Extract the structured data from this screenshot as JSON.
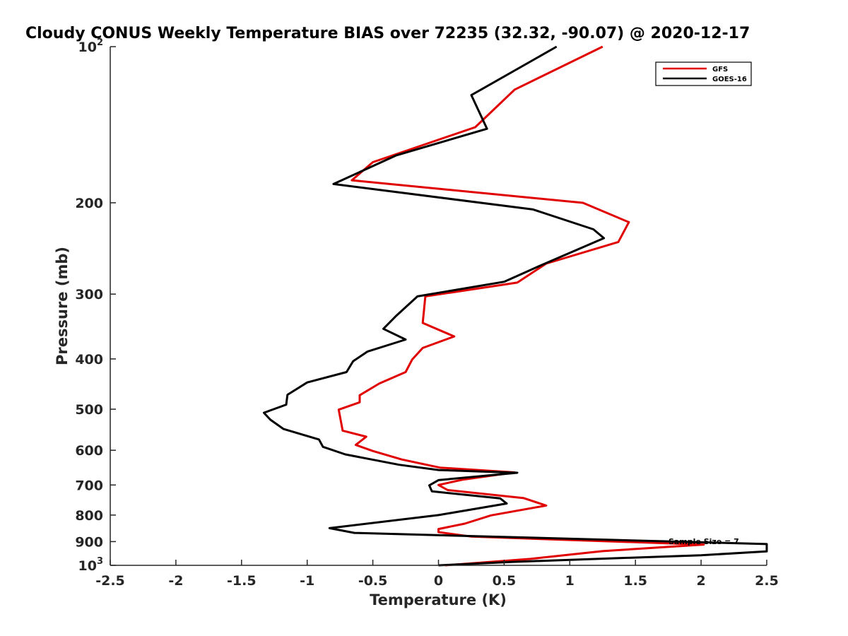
{
  "chart_data": {
    "type": "line",
    "title": "Cloudy CONUS Weekly Temperature BIAS over 72235 (32.32, -90.07) @ 2020-12-17",
    "xlabel": "Temperature (K)",
    "ylabel": "Pressure (mb)",
    "xlim": [
      -2.5,
      2.5
    ],
    "ylim": [
      100,
      1000
    ],
    "y_scale": "log",
    "y_reversed": true,
    "grid": false,
    "legend_position": "top-right",
    "x_ticks": [
      -2.5,
      -2,
      -1.5,
      -1,
      -0.5,
      0,
      0.5,
      1,
      1.5,
      2,
      2.5
    ],
    "x_tick_labels": [
      "-2.5",
      "-2",
      "-1.5",
      "-1",
      "-0.5",
      "0",
      "0.5",
      "1",
      "1.5",
      "2",
      "2.5"
    ],
    "y_ticks": [
      {
        "value": 100,
        "base": "10",
        "exp": "2"
      },
      {
        "value": 200,
        "label": "200"
      },
      {
        "value": 300,
        "label": "300"
      },
      {
        "value": 400,
        "label": "400"
      },
      {
        "value": 500,
        "label": "500"
      },
      {
        "value": 600,
        "label": "600"
      },
      {
        "value": 700,
        "label": "700"
      },
      {
        "value": 800,
        "label": "800"
      },
      {
        "value": 900,
        "label": "900"
      },
      {
        "value": 1000,
        "base": "10",
        "exp": "3"
      }
    ],
    "annotation": "Sample Size = 7",
    "series": [
      {
        "name": "GFS",
        "color": "#e00000",
        "points": [
          [
            1.25,
            100
          ],
          [
            0.58,
            121
          ],
          [
            0.28,
            143
          ],
          [
            -0.5,
            167
          ],
          [
            -0.66,
            181
          ],
          [
            1.1,
            200
          ],
          [
            1.45,
            218
          ],
          [
            1.37,
            238
          ],
          [
            0.82,
            262
          ],
          [
            0.6,
            285
          ],
          [
            -0.1,
            303
          ],
          [
            -0.12,
            341
          ],
          [
            0.12,
            362
          ],
          [
            -0.12,
            381
          ],
          [
            -0.2,
            401
          ],
          [
            -0.25,
            424
          ],
          [
            -0.45,
            446
          ],
          [
            -0.6,
            470
          ],
          [
            -0.6,
            485
          ],
          [
            -0.76,
            501
          ],
          [
            -0.73,
            550
          ],
          [
            -0.55,
            565
          ],
          [
            -0.63,
            586
          ],
          [
            -0.5,
            602
          ],
          [
            -0.28,
            625
          ],
          [
            0.01,
            648
          ],
          [
            0.58,
            662
          ],
          [
            0.18,
            684
          ],
          [
            0.0,
            700
          ],
          [
            0.07,
            716
          ],
          [
            0.65,
            742
          ],
          [
            0.82,
            767
          ],
          [
            0.4,
            801
          ],
          [
            0.2,
            831
          ],
          [
            0.0,
            851
          ],
          [
            0.0,
            863
          ],
          [
            0.25,
            880
          ],
          [
            2.02,
            912
          ],
          [
            1.25,
            939
          ],
          [
            0.7,
            972
          ],
          [
            0.05,
            1000
          ]
        ]
      },
      {
        "name": "GOES-16",
        "color": "#000000",
        "points": [
          [
            0.9,
            100
          ],
          [
            0.25,
            124
          ],
          [
            0.37,
            144
          ],
          [
            -0.32,
            162
          ],
          [
            -0.8,
            184
          ],
          [
            0.72,
            206
          ],
          [
            1.18,
            225
          ],
          [
            1.26,
            234
          ],
          [
            0.78,
            264
          ],
          [
            0.5,
            284
          ],
          [
            -0.16,
            303
          ],
          [
            -0.32,
            330
          ],
          [
            -0.42,
            350
          ],
          [
            -0.25,
            367
          ],
          [
            -0.54,
            387
          ],
          [
            -0.65,
            404
          ],
          [
            -0.7,
            424
          ],
          [
            -1.0,
            444
          ],
          [
            -1.15,
            469
          ],
          [
            -1.16,
            490
          ],
          [
            -1.33,
            508
          ],
          [
            -1.28,
            524
          ],
          [
            -1.18,
            546
          ],
          [
            -0.91,
            572
          ],
          [
            -0.88,
            591
          ],
          [
            -0.71,
            611
          ],
          [
            -0.3,
            640
          ],
          [
            0.0,
            655
          ],
          [
            0.6,
            663
          ],
          [
            0.0,
            685
          ],
          [
            -0.07,
            701
          ],
          [
            -0.05,
            720
          ],
          [
            0.47,
            743
          ],
          [
            0.52,
            760
          ],
          [
            0.0,
            800
          ],
          [
            -0.83,
            848
          ],
          [
            -0.64,
            866
          ],
          [
            2.5,
            910
          ],
          [
            2.5,
            940
          ],
          [
            2.0,
            956
          ],
          [
            0.55,
            985
          ],
          [
            0.0,
            1000
          ]
        ]
      }
    ]
  }
}
